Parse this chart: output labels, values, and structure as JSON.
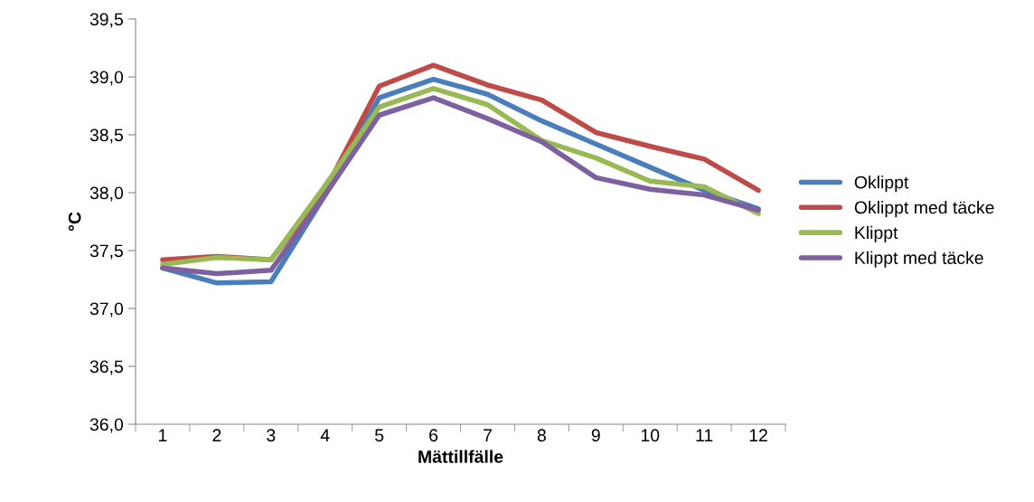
{
  "chart_data": {
    "type": "line",
    "xlabel": "Mättillfälle",
    "ylabel": "°C",
    "categories": [
      "1",
      "2",
      "3",
      "4",
      "5",
      "6",
      "7",
      "8",
      "9",
      "10",
      "11",
      "12"
    ],
    "series": [
      {
        "name": "Oklippt",
        "color": "#4a7ebb",
        "values": [
          37.35,
          37.22,
          37.23,
          37.98,
          38.82,
          38.98,
          38.85,
          38.62,
          38.42,
          38.22,
          38.02,
          37.86
        ]
      },
      {
        "name": "Oklippt med täcke",
        "color": "#be4b48",
        "values": [
          37.42,
          37.45,
          37.42,
          38.02,
          38.92,
          39.1,
          38.93,
          38.8,
          38.52,
          38.4,
          38.29,
          38.02
        ]
      },
      {
        "name": "Klippt",
        "color": "#98b954",
        "values": [
          37.38,
          37.44,
          37.42,
          38.06,
          38.74,
          38.9,
          38.76,
          38.45,
          38.3,
          38.1,
          38.05,
          37.82
        ]
      },
      {
        "name": "Klippt med täcke",
        "color": "#7d60a0",
        "values": [
          37.35,
          37.3,
          37.33,
          37.98,
          38.67,
          38.82,
          38.64,
          38.44,
          38.13,
          38.03,
          37.98,
          37.85
        ]
      }
    ],
    "ylim": [
      36.0,
      39.5
    ],
    "yticks": [
      {
        "value": 36.0,
        "label": "36,0"
      },
      {
        "value": 36.5,
        "label": "36,5"
      },
      {
        "value": 37.0,
        "label": "37,0"
      },
      {
        "value": 37.5,
        "label": "37,5"
      },
      {
        "value": 38.0,
        "label": "38,0"
      },
      {
        "value": 38.5,
        "label": "38,5"
      },
      {
        "value": 39.0,
        "label": "39,0"
      },
      {
        "value": 39.5,
        "label": "39,5"
      }
    ],
    "grid": false,
    "legend": "right",
    "marker": "none",
    "line_style": "solid"
  }
}
